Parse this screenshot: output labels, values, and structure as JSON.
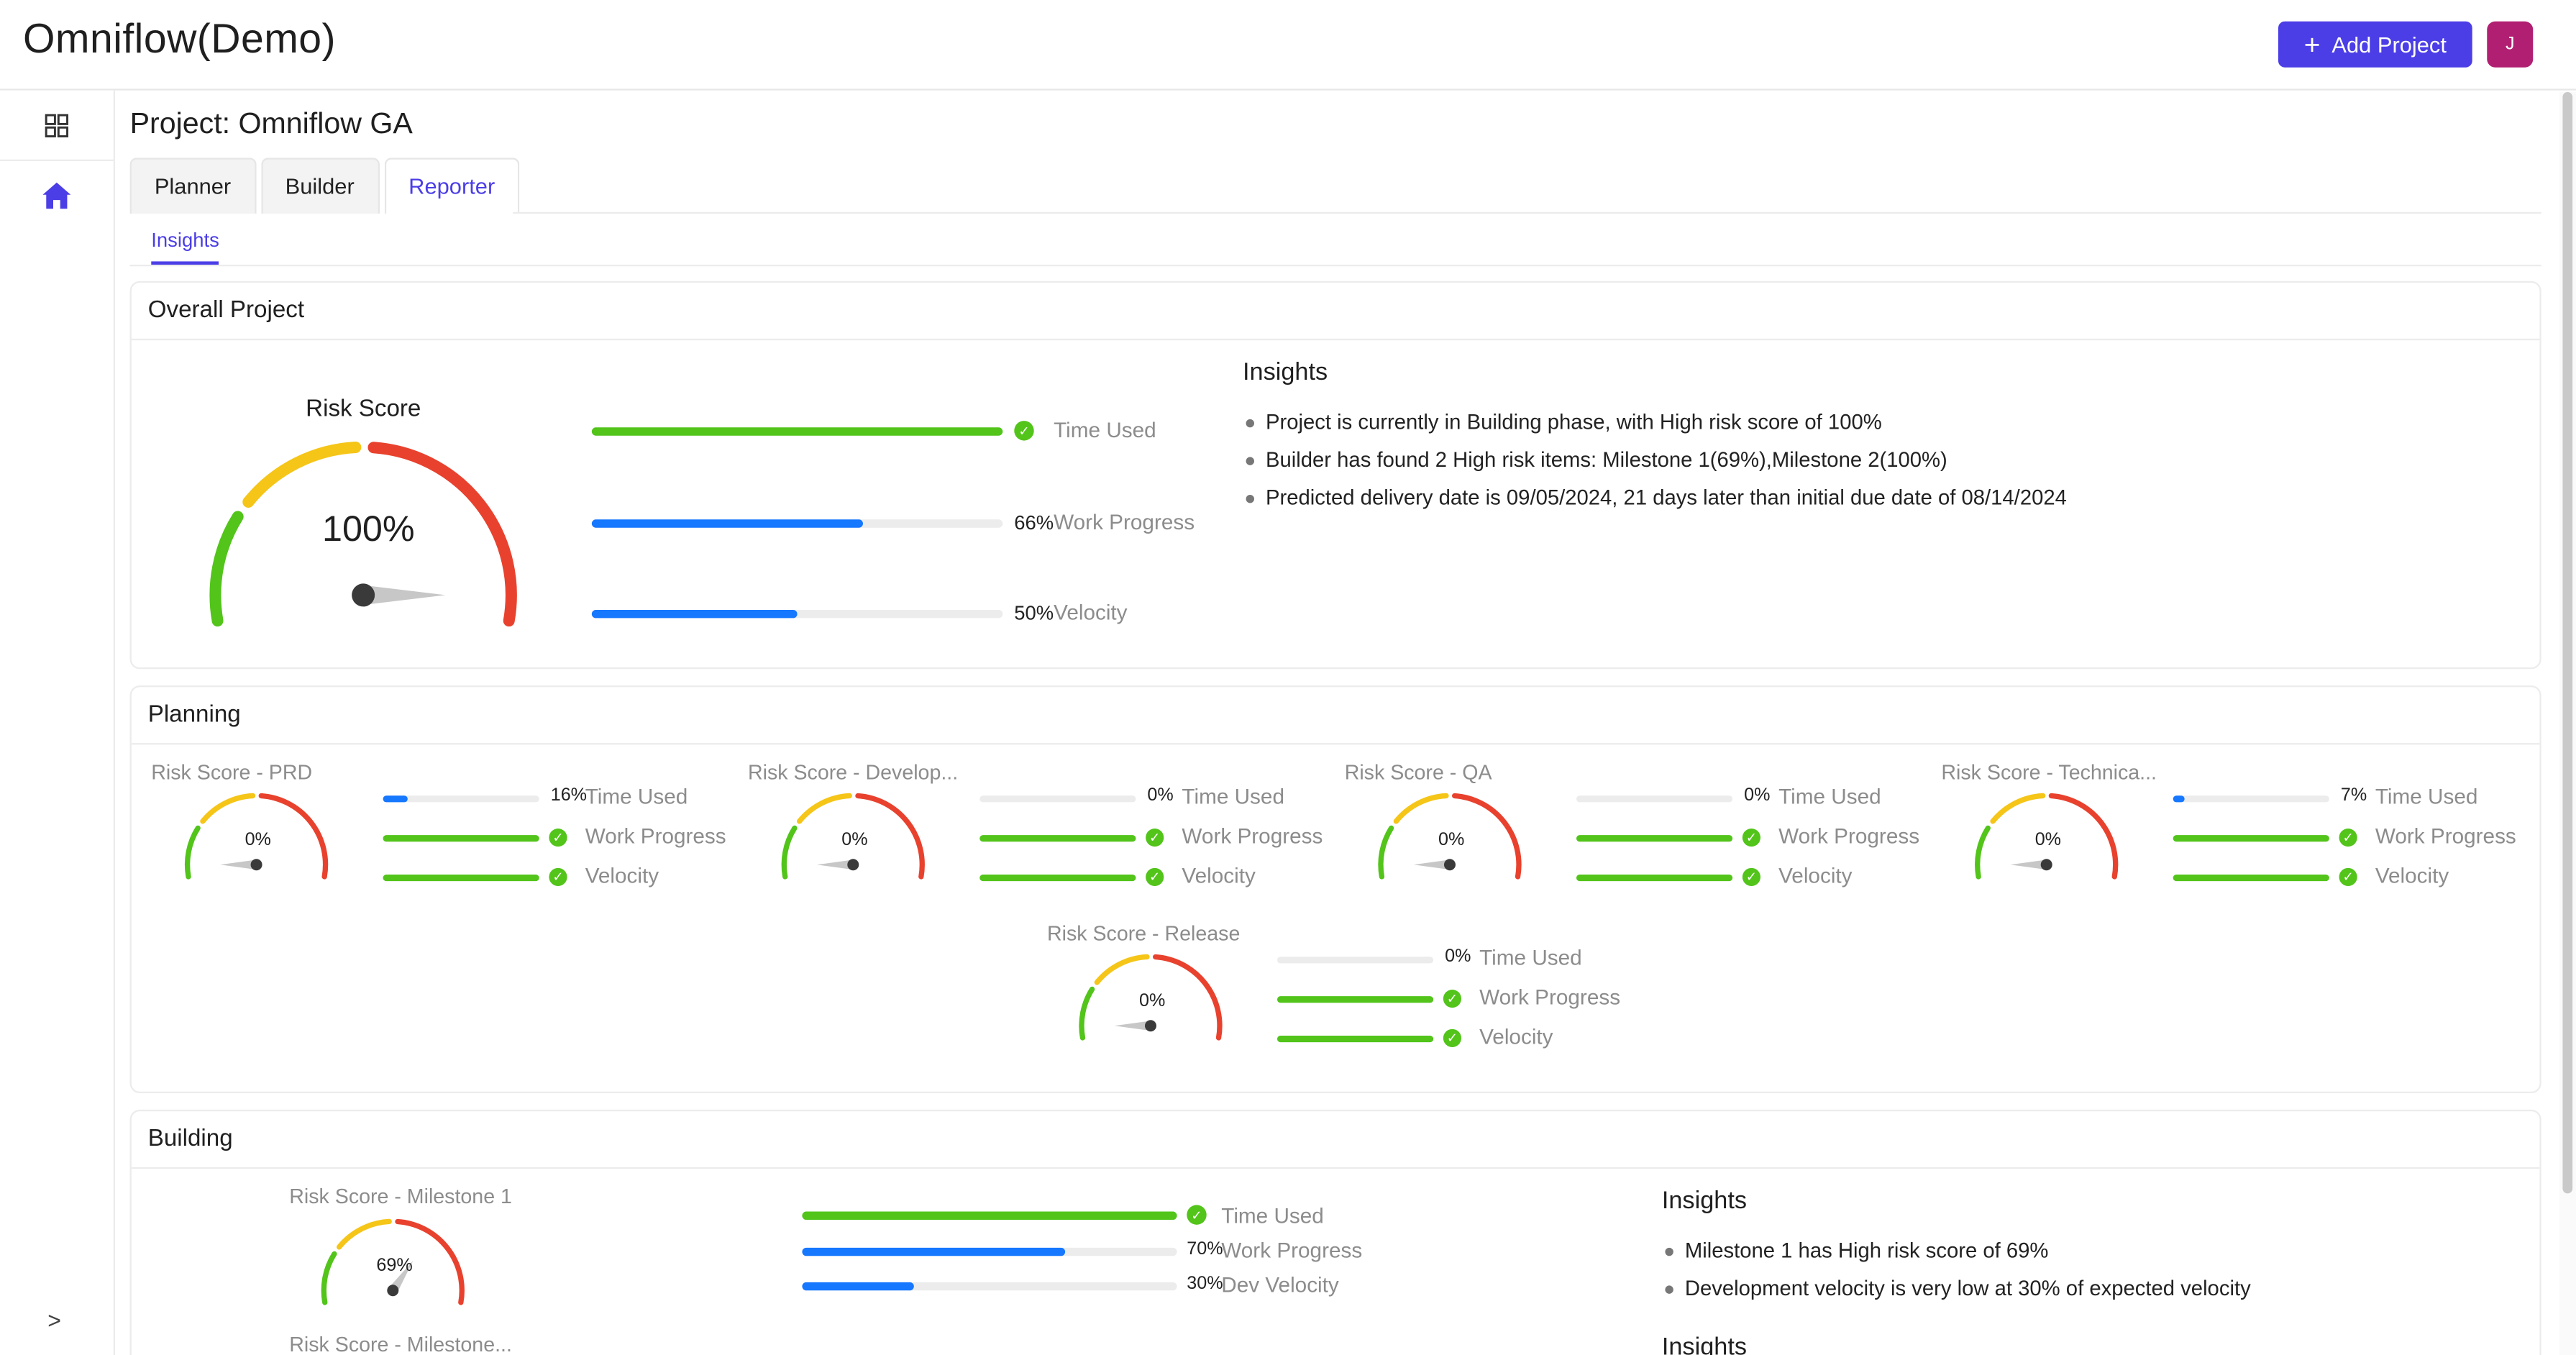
{
  "app": {
    "title": "Omniflow(Demo)"
  },
  "header": {
    "add_project_label": "Add Project",
    "avatar_initial": "J"
  },
  "sidebar": {
    "items": [
      {
        "icon": "apps-grid-icon"
      },
      {
        "icon": "home-icon"
      }
    ],
    "expand_icon": "chevron-right-icon"
  },
  "project": {
    "title": "Project: Omniflow GA"
  },
  "tabs": [
    {
      "label": "Planner"
    },
    {
      "label": "Builder"
    },
    {
      "label": "Reporter",
      "active": true
    }
  ],
  "subtabs": [
    {
      "label": "Insights",
      "active": true
    }
  ],
  "colors": {
    "accent": "#4b3ee6",
    "green": "#52c41a",
    "blue": "#1677ff",
    "gauge_green": "#52c41a",
    "gauge_yellow": "#f5c518",
    "gauge_red": "#e8422e",
    "avatar": "#b11f72"
  },
  "overall": {
    "title": "Overall Project",
    "risk_title": "Risk Score",
    "risk_value": "100%",
    "risk_fraction": 1.0,
    "metrics": [
      {
        "label": "Time Used",
        "value": null,
        "fill_pct": 100,
        "color": "green",
        "check": true
      },
      {
        "label": "Work Progress",
        "value": "66%",
        "fill_pct": 66,
        "color": "blue",
        "check": false
      },
      {
        "label": "Velocity",
        "value": "50%",
        "fill_pct": 50,
        "color": "blue",
        "check": false
      }
    ],
    "insights_title": "Insights",
    "insights": [
      "Project is currently in Building phase, with High risk score of 100%",
      "Builder has found 2 High risk items: Milestone 1(69%),Milestone 2(100%)",
      "Predicted delivery date is 09/05/2024, 21 days later than initial due date of 08/14/2024"
    ]
  },
  "planning": {
    "title": "Planning",
    "items": [
      {
        "title": "Risk Score - PRD",
        "risk": "0%",
        "risk_fraction": 0,
        "time_used": "16%",
        "time_fill": 16,
        "work_progress": "Work Progress",
        "velocity": "Velocity",
        "time_label": "Time Used"
      },
      {
        "title": "Risk Score - Develop...",
        "risk": "0%",
        "risk_fraction": 0,
        "time_used": "0%",
        "time_fill": 0,
        "work_progress": "Work Progress",
        "velocity": "Velocity",
        "time_label": "Time Used"
      },
      {
        "title": "Risk Score - QA",
        "risk": "0%",
        "risk_fraction": 0,
        "time_used": "0%",
        "time_fill": 0,
        "work_progress": "Work Progress",
        "velocity": "Velocity",
        "time_label": "Time Used"
      },
      {
        "title": "Risk Score - Technica...",
        "risk": "0%",
        "risk_fraction": 0,
        "time_used": "7%",
        "time_fill": 7,
        "work_progress": "Work Progress",
        "velocity": "Velocity",
        "time_label": "Time Used"
      },
      {
        "title": "Risk Score - Release",
        "risk": "0%",
        "risk_fraction": 0,
        "time_used": "0%",
        "time_fill": 0,
        "work_progress": "Work Progress",
        "velocity": "Velocity",
        "time_label": "Time Used"
      }
    ]
  },
  "building": {
    "title": "Building",
    "milestone1": {
      "title": "Risk Score - Milestone 1",
      "risk": "69%",
      "risk_fraction": 0.69,
      "metrics": [
        {
          "label": "Time Used",
          "value": null,
          "fill_pct": 100,
          "color": "green",
          "check": true
        },
        {
          "label": "Work Progress",
          "value": "70%",
          "fill_pct": 70,
          "color": "blue",
          "check": false
        },
        {
          "label": "Dev Velocity",
          "value": "30%",
          "fill_pct": 30,
          "color": "blue",
          "check": false
        }
      ],
      "insights_title": "Insights",
      "insights": [
        "Milestone 1 has High risk score of 69%",
        "Development velocity is very low at 30% of expected velocity"
      ]
    },
    "milestone2": {
      "title": "Risk Score - Milestone...",
      "insights_title": "Insights"
    }
  }
}
